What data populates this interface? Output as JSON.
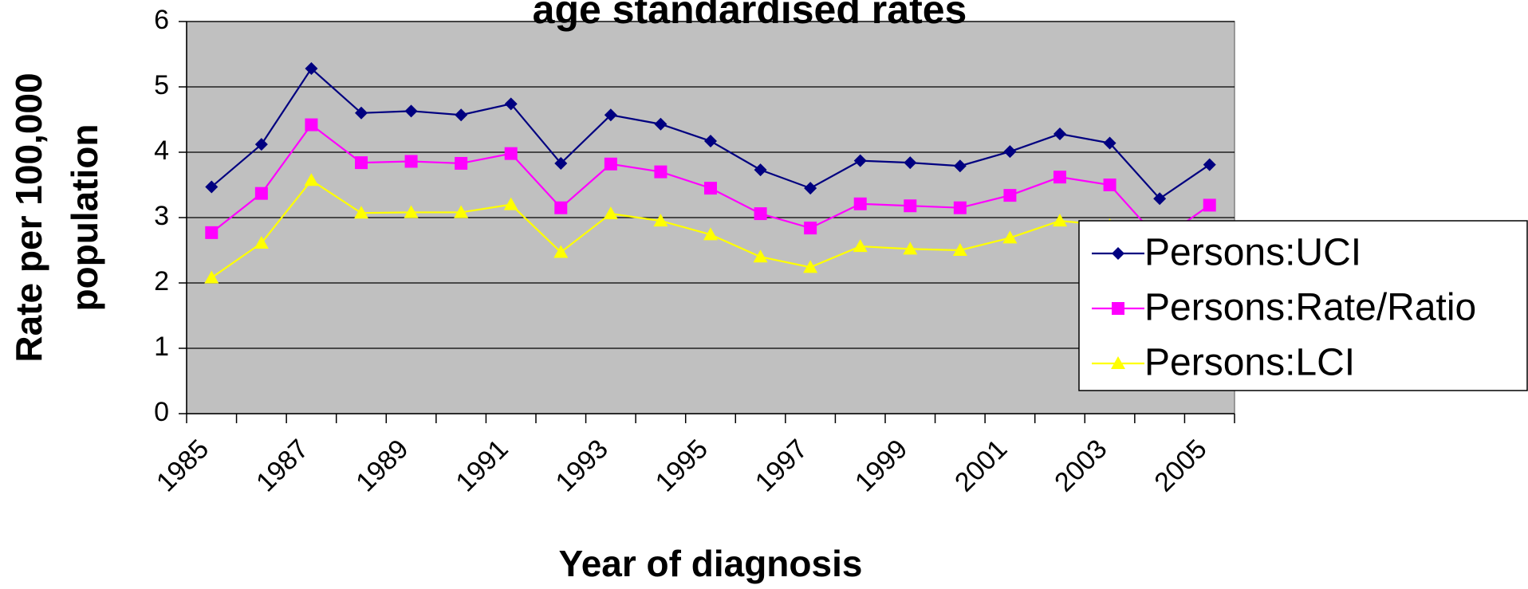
{
  "chart_data": {
    "type": "line",
    "title": "age standardised rates",
    "x_label": "Year of diagnosis",
    "y_label": [
      "Rate per 100,000",
      "population"
    ],
    "categories": [
      "1985",
      null,
      "1987",
      null,
      "1989",
      null,
      "1991",
      null,
      "1993",
      null,
      "1995",
      null,
      "1997",
      null,
      "1999",
      null,
      "2001",
      null,
      "2003",
      null,
      "2005"
    ],
    "series": [
      {
        "name": "Persons:UCI",
        "color": "#000080",
        "marker": "diamond",
        "values": [
          3.47,
          4.12,
          5.28,
          4.6,
          4.63,
          4.57,
          4.74,
          3.83,
          4.57,
          4.43,
          4.17,
          3.73,
          3.45,
          3.87,
          3.84,
          3.79,
          4.01,
          4.28,
          4.14,
          3.29,
          3.81
        ]
      },
      {
        "name": "Persons:Rate/Ratio",
        "color": "#ff00ff",
        "marker": "square",
        "values": [
          2.77,
          3.37,
          4.42,
          3.84,
          3.86,
          3.83,
          3.98,
          3.15,
          3.82,
          3.7,
          3.45,
          3.06,
          2.84,
          3.21,
          3.18,
          3.15,
          3.34,
          3.62,
          3.5,
          2.65,
          3.19
        ]
      },
      {
        "name": "Persons:LCI",
        "color": "#ffff00",
        "marker": "triangle",
        "values": [
          2.08,
          2.61,
          3.57,
          3.07,
          3.08,
          3.08,
          3.2,
          2.47,
          3.06,
          2.95,
          2.74,
          2.4,
          2.24,
          2.56,
          2.52,
          2.5,
          2.69,
          2.95,
          2.88,
          2.15,
          2.65
        ]
      }
    ],
    "ylim": [
      0,
      6
    ],
    "yticks": [
      0,
      1,
      2,
      3,
      4,
      5,
      6
    ],
    "grid": true,
    "plot_background": "#c0c0c0",
    "legend": "right"
  }
}
